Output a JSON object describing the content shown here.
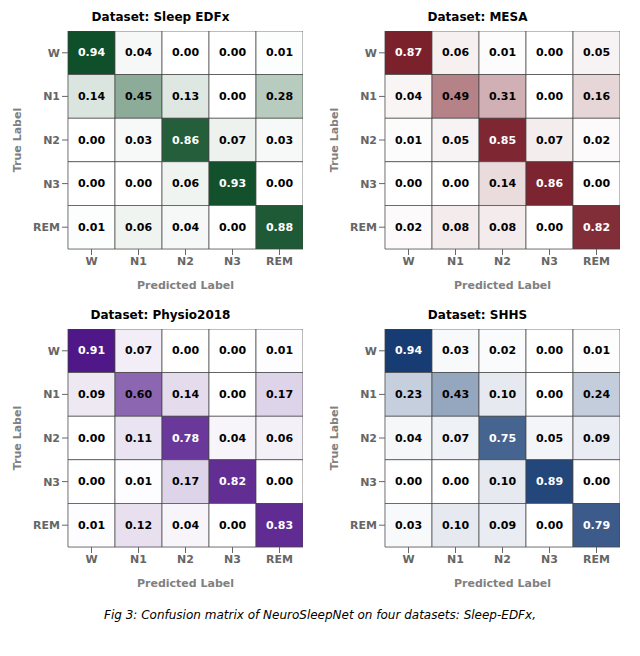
{
  "caption": "Fig 3: Confusion matrix of NeuroSleepNet on four datasets: Sleep-EDFx,",
  "chart_data": [
    {
      "type": "heatmap",
      "title": "Dataset: Sleep EDFx",
      "xlabel": "Predicted Label",
      "ylabel": "True Label",
      "categories": [
        "W",
        "N1",
        "N2",
        "N3",
        "REM"
      ],
      "y_categories": [
        "W",
        "N1",
        "N2",
        "N3",
        "REM"
      ],
      "values": [
        [
          0.94,
          0.04,
          0.0,
          0.0,
          0.01
        ],
        [
          0.14,
          0.45,
          0.13,
          0.0,
          0.28
        ],
        [
          0.0,
          0.03,
          0.86,
          0.07,
          0.03
        ],
        [
          0.0,
          0.0,
          0.06,
          0.93,
          0.0
        ],
        [
          0.01,
          0.06,
          0.04,
          0.0,
          0.88
        ]
      ],
      "value_labels": [
        [
          "0.94",
          "0.04",
          "0.00",
          "0.00",
          "0.01"
        ],
        [
          "0.14",
          "0.45",
          "0.13",
          "0.00",
          "0.28"
        ],
        [
          "0.00",
          "0.03",
          "0.86",
          "0.07",
          "0.03"
        ],
        [
          "0.00",
          "0.00",
          "0.06",
          "0.93",
          "0.00"
        ],
        [
          "0.01",
          "0.06",
          "0.04",
          "0.00",
          "0.88"
        ]
      ],
      "zlim": [
        0.0,
        1.0
      ],
      "color": "#00441b",
      "grid": true,
      "data_labels": true
    },
    {
      "type": "heatmap",
      "title": "Dataset: MESA",
      "xlabel": "Predicted Label",
      "ylabel": "True Label",
      "categories": [
        "W",
        "N1",
        "N2",
        "N3",
        "REM"
      ],
      "y_categories": [
        "W",
        "N1",
        "N2",
        "N3",
        "REM"
      ],
      "values": [
        [
          0.87,
          0.06,
          0.01,
          0.0,
          0.05
        ],
        [
          0.04,
          0.49,
          0.31,
          0.0,
          0.16
        ],
        [
          0.01,
          0.05,
          0.85,
          0.07,
          0.02
        ],
        [
          0.0,
          0.0,
          0.14,
          0.86,
          0.0
        ],
        [
          0.02,
          0.08,
          0.08,
          0.0,
          0.82
        ]
      ],
      "value_labels": [
        [
          "0.87",
          "0.06",
          "0.01",
          "0.00",
          "0.05"
        ],
        [
          "0.04",
          "0.49",
          "0.31",
          "0.00",
          "0.16"
        ],
        [
          "0.01",
          "0.05",
          "0.85",
          "0.07",
          "0.02"
        ],
        [
          "0.00",
          "0.00",
          "0.14",
          "0.86",
          "0.00"
        ],
        [
          "0.02",
          "0.08",
          "0.08",
          "0.00",
          "0.82"
        ]
      ],
      "zlim": [
        0.0,
        1.0
      ],
      "color": "#67000d",
      "grid": true,
      "data_labels": true
    },
    {
      "type": "heatmap",
      "title": "Dataset: Physio2018",
      "xlabel": "Predicted Label",
      "ylabel": "True Label",
      "categories": [
        "W",
        "N1",
        "N2",
        "N3",
        "REM"
      ],
      "y_categories": [
        "W",
        "N1",
        "N2",
        "N3",
        "REM"
      ],
      "values": [
        [
          0.91,
          0.07,
          0.0,
          0.0,
          0.01
        ],
        [
          0.09,
          0.6,
          0.14,
          0.0,
          0.17
        ],
        [
          0.0,
          0.11,
          0.78,
          0.04,
          0.06
        ],
        [
          0.0,
          0.01,
          0.17,
          0.82,
          0.0
        ],
        [
          0.01,
          0.12,
          0.04,
          0.0,
          0.83
        ]
      ],
      "value_labels": [
        [
          "0.91",
          "0.07",
          "0.00",
          "0.00",
          "0.01"
        ],
        [
          "0.09",
          "0.60",
          "0.14",
          "0.00",
          "0.17"
        ],
        [
          "0.00",
          "0.11",
          "0.78",
          "0.04",
          "0.06"
        ],
        [
          "0.00",
          "0.01",
          "0.17",
          "0.82",
          "0.00"
        ],
        [
          "0.01",
          "0.12",
          "0.04",
          "0.00",
          "0.83"
        ]
      ],
      "zlim": [
        0.0,
        1.0
      ],
      "color": "#3f007d",
      "grid": true,
      "data_labels": true
    },
    {
      "type": "heatmap",
      "title": "Dataset: SHHS",
      "xlabel": "Predicted Label",
      "ylabel": "True Label",
      "categories": [
        "W",
        "N1",
        "N2",
        "N3",
        "REM"
      ],
      "y_categories": [
        "W",
        "N1",
        "N2",
        "N3",
        "REM"
      ],
      "values": [
        [
          0.94,
          0.03,
          0.02,
          0.0,
          0.01
        ],
        [
          0.23,
          0.43,
          0.1,
          0.0,
          0.24
        ],
        [
          0.04,
          0.07,
          0.75,
          0.05,
          0.09
        ],
        [
          0.0,
          0.0,
          0.1,
          0.89,
          0.0
        ],
        [
          0.03,
          0.1,
          0.09,
          0.0,
          0.79
        ]
      ],
      "value_labels": [
        [
          "0.94",
          "0.03",
          "0.02",
          "0.00",
          "0.01"
        ],
        [
          "0.23",
          "0.43",
          "0.10",
          "0.00",
          "0.24"
        ],
        [
          "0.04",
          "0.07",
          "0.75",
          "0.05",
          "0.09"
        ],
        [
          "0.00",
          "0.00",
          "0.10",
          "0.89",
          "0.00"
        ],
        [
          "0.03",
          "0.10",
          "0.09",
          "0.00",
          "0.79"
        ]
      ],
      "zlim": [
        0.0,
        1.0
      ],
      "color": "#08306b",
      "grid": true,
      "data_labels": true
    }
  ]
}
